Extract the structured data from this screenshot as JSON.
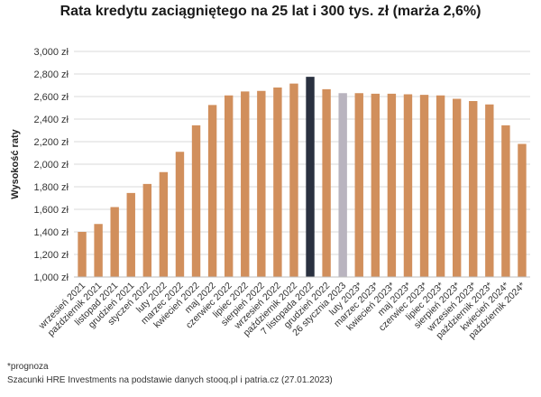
{
  "chart_data": {
    "type": "bar",
    "title": "Rata kredytu zaciągniętego na 25 lat i 300 tys. zł (marża 2,6%)",
    "xlabel": "",
    "ylabel": "Wysokość raty",
    "ylim": [
      1000,
      3000
    ],
    "yticks": [
      "1,000 zł",
      "1,200 zł",
      "1,400 zł",
      "1,600 zł",
      "1,800 zł",
      "2,000 zł",
      "2,200 zł",
      "2,400 zł",
      "2,600 zł",
      "2,800 zł",
      "3,000 zł"
    ],
    "ytick_values": [
      1000,
      1200,
      1400,
      1600,
      1800,
      2000,
      2200,
      2400,
      2600,
      2800,
      3000
    ],
    "grid": true,
    "categories": [
      "wrzesień 2021",
      "październik 2021",
      "listopad 2021",
      "grudzień 2021",
      "styczeń 2022",
      "luty 2022",
      "marzec 2022",
      "kwiecień 2022",
      "maj 2022",
      "czerwiec 2022",
      "lipiec 2022",
      "sierpień 2022",
      "wrzesień 2022",
      "październik 2022",
      "7 listopada 2022",
      "grudzień 2022",
      "26 stycznia 2023",
      "luty 2023*",
      "marzec 2023*",
      "kwiecień 2023*",
      "maj 2023*",
      "czerwiec 2023*",
      "lipiec 2023*",
      "sierpień 2023*",
      "wrzesień 2023*",
      "październik 2023*",
      "kwiecień 2024*",
      "październik 2024*"
    ],
    "values": [
      1400,
      1470,
      1620,
      1745,
      1825,
      1930,
      2110,
      2345,
      2525,
      2610,
      2645,
      2650,
      2680,
      2715,
      2775,
      2665,
      2630,
      2630,
      2625,
      2625,
      2620,
      2615,
      2610,
      2580,
      2560,
      2530,
      2345,
      2180
    ],
    "bar_colors": [
      "#d18f5c",
      "#d18f5c",
      "#d18f5c",
      "#d18f5c",
      "#d18f5c",
      "#d18f5c",
      "#d18f5c",
      "#d18f5c",
      "#d18f5c",
      "#d18f5c",
      "#d18f5c",
      "#d18f5c",
      "#d18f5c",
      "#d18f5c",
      "#2a3140",
      "#d18f5c",
      "#b9b4bf",
      "#d18f5c",
      "#d18f5c",
      "#d18f5c",
      "#d18f5c",
      "#d18f5c",
      "#d18f5c",
      "#d18f5c",
      "#d18f5c",
      "#d18f5c",
      "#d18f5c",
      "#d18f5c"
    ]
  },
  "notes": {
    "forecast": "*prognoza",
    "source": "Szacunki HRE Investments na podstawie danych stooq.pl i patria.cz (27.01.2023)"
  }
}
